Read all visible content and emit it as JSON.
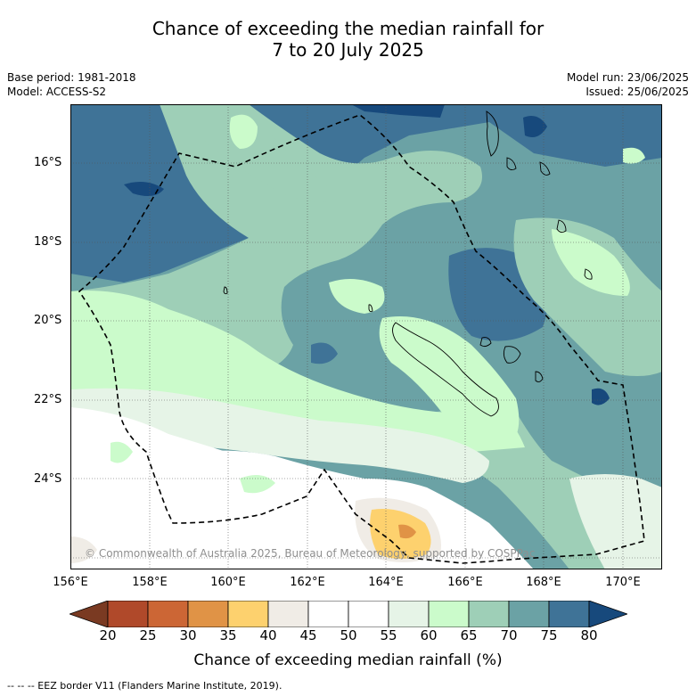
{
  "title_line1": "Chance of exceeding the median rainfall for",
  "title_line2": "7 to 20 July 2025",
  "base_period": "Base period: 1981-2018",
  "model": "Model: ACCESS-S2",
  "model_run": "Model run: 23/06/2025",
  "issued": "Issued: 25/06/2025",
  "lat_labels": [
    "16°S",
    "18°S",
    "20°S",
    "22°S",
    "24°S"
  ],
  "lon_labels": [
    "156°E",
    "158°E",
    "160°E",
    "162°E",
    "164°E",
    "166°E",
    "168°E",
    "170°E"
  ],
  "copyright": "© Commonwealth of Australia 2025, Bureau of Meteorology, supported by COSPPac",
  "colorbar": {
    "title": "Chance of exceeding median rainfall (%)",
    "ticks": [
      "20",
      "25",
      "30",
      "35",
      "40",
      "45",
      "50",
      "55",
      "60",
      "65",
      "70",
      "75",
      "80"
    ],
    "colors": [
      "#7a3a22",
      "#b0492a",
      "#cc6635",
      "#e09346",
      "#fdd16e",
      "#f0ece6",
      "#ffffff",
      "#ffffff",
      "#e6f4e7",
      "#cbfbcb",
      "#9ecfb7",
      "#6ba2a5",
      "#3f7397",
      "#17497c"
    ]
  },
  "footnote": "--  --  -- EEZ border V11 (Flanders Marine Institute, 2019)."
}
